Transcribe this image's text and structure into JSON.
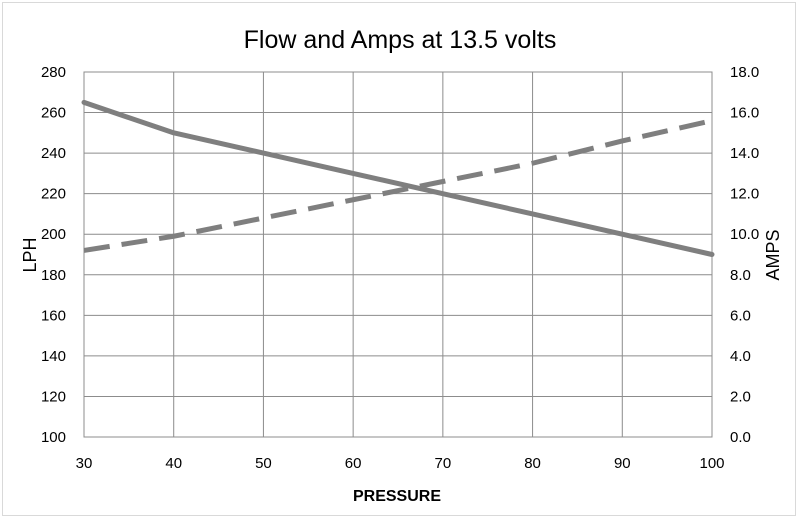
{
  "chart_data": {
    "type": "line",
    "title": "Flow and Amps at 13.5 volts",
    "xlabel": "PRESSURE",
    "ylabel": "LPH",
    "y2label": "AMPS",
    "xlim": [
      30,
      100
    ],
    "ylim": [
      100,
      280
    ],
    "y2lim": [
      0.0,
      18.0
    ],
    "x_ticks": [
      "30",
      "40",
      "50",
      "60",
      "70",
      "80",
      "90",
      "100"
    ],
    "y_ticks": [
      "100",
      "120",
      "140",
      "160",
      "180",
      "200",
      "220",
      "240",
      "260",
      "280"
    ],
    "y2_ticks": [
      "0.0",
      "2.0",
      "4.0",
      "6.0",
      "8.0",
      "10.0",
      "12.0",
      "14.0",
      "16.0",
      "18.0"
    ],
    "grid": true,
    "legend": "none",
    "series": [
      {
        "axis": "left",
        "style": "solid",
        "color": "#7f7f7f",
        "x": [
          30,
          40,
          50,
          60,
          70,
          80,
          90,
          100
        ],
        "values": [
          265,
          250,
          240,
          230,
          220,
          210,
          200,
          190
        ]
      },
      {
        "axis": "right",
        "style": "dashed",
        "color": "#7f7f7f",
        "x": [
          30,
          40,
          50,
          60,
          70,
          80,
          90,
          100
        ],
        "values": [
          9.2,
          9.9,
          10.8,
          11.7,
          12.6,
          13.5,
          14.6,
          15.6
        ]
      }
    ]
  }
}
